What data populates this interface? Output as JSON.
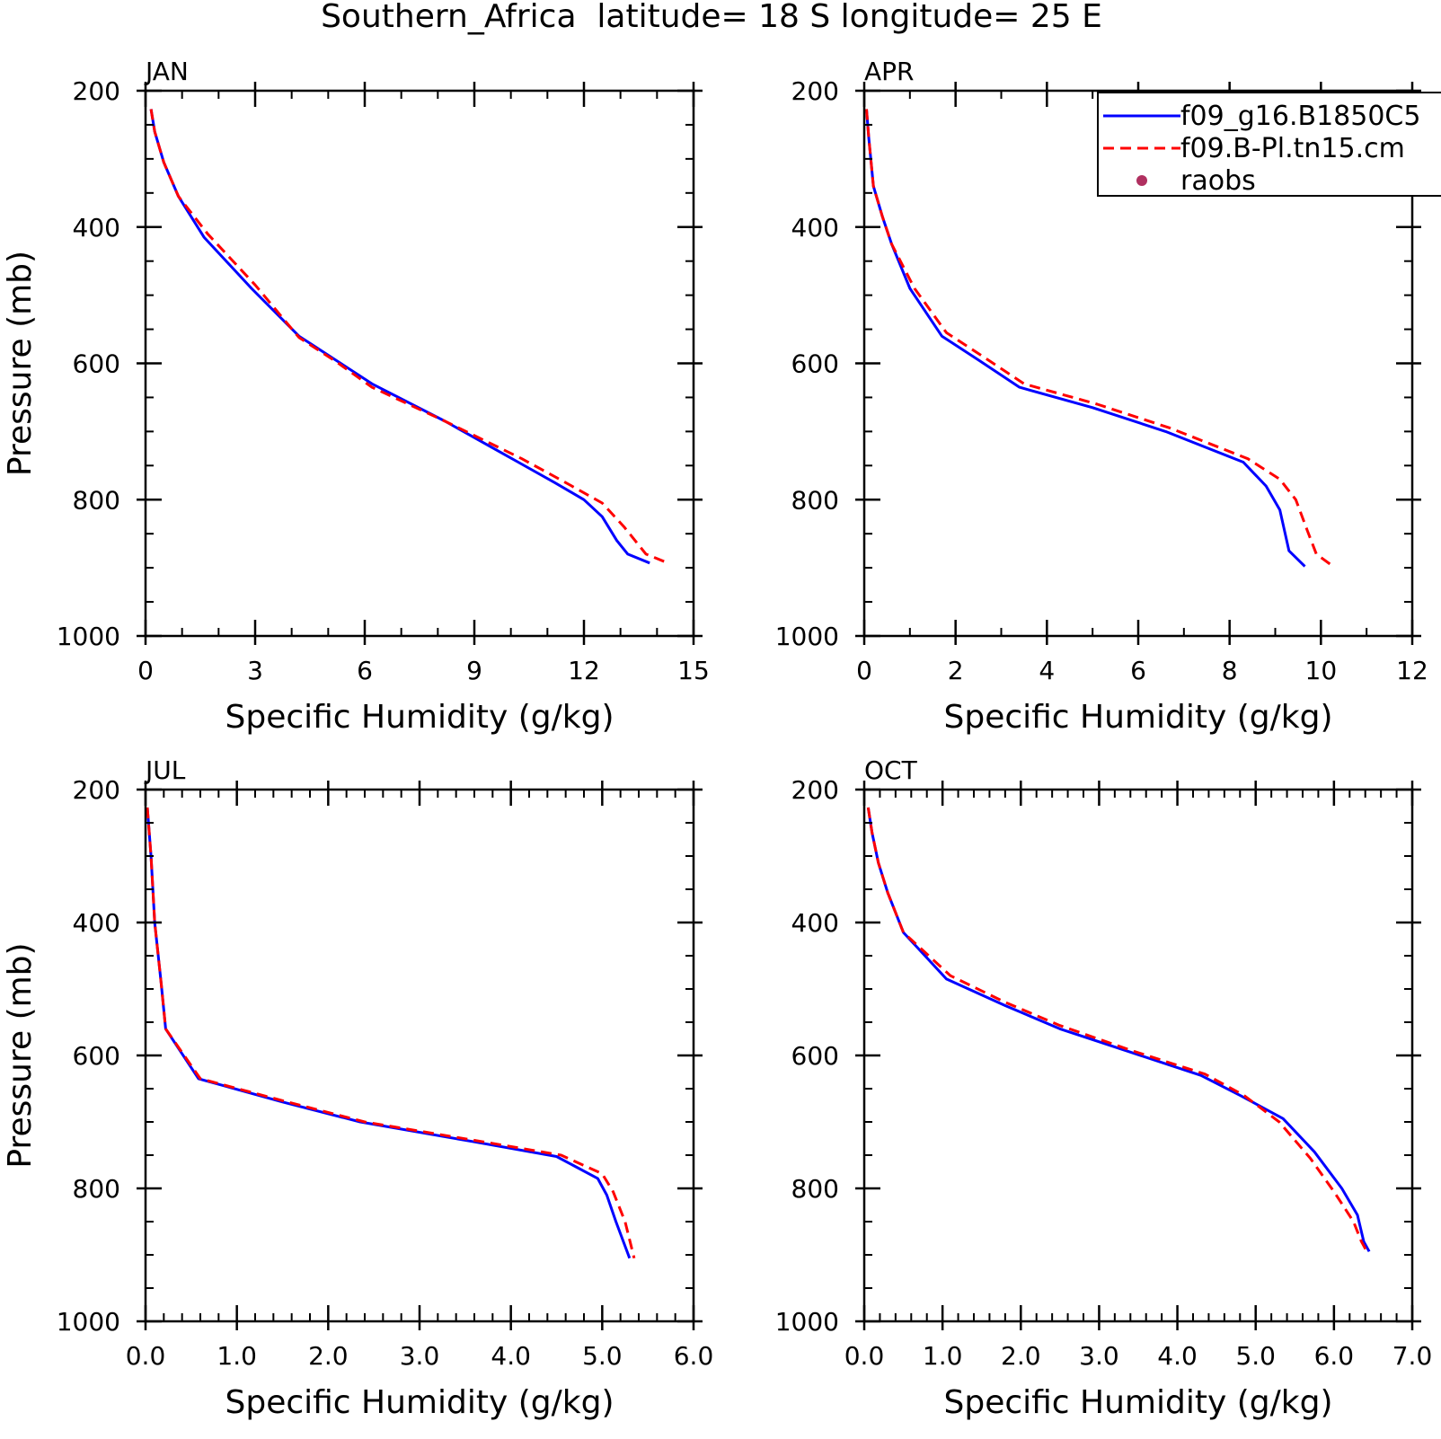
{
  "title": "Southern_Africa  latitude= 18 S longitude= 25 E",
  "legend": {
    "placement": "top-right",
    "entries": [
      {
        "label": "f09_g16.B1850C5",
        "style": "solid",
        "color": "#0000ff"
      },
      {
        "label": "f09.B-Pl.tn15.cm",
        "style": "dashed",
        "color": "#ff0000"
      },
      {
        "label": "raobs",
        "style": "marker",
        "color": "#b03060"
      }
    ]
  },
  "chart_data": [
    {
      "type": "line",
      "panel": "JAN",
      "title": "JAN",
      "xlabel": "Specific Humidity (g/kg)",
      "ylabel": "Pressure (mb)",
      "xlim": [
        0,
        15
      ],
      "ylim": [
        1000,
        200
      ],
      "y_inverted": true,
      "xticks": [
        0,
        3,
        6,
        9,
        12,
        15
      ],
      "xtick_labels": [
        "0",
        "3",
        "6",
        "9",
        "12",
        "15"
      ],
      "xminor": 1,
      "yticks": [
        200,
        400,
        600,
        800,
        1000
      ],
      "ytick_labels": [
        "200",
        "400",
        "600",
        "800",
        "1000"
      ],
      "yminor": 50,
      "grid": false,
      "series": [
        {
          "name": "f09_g16.B1850C5",
          "color": "#0000ff",
          "dash": "none",
          "x": [
            0.15,
            0.25,
            0.5,
            0.9,
            1.6,
            2.9,
            4.2,
            5.2,
            6.2,
            8.2,
            10.2,
            11.2,
            12.0,
            12.5,
            12.9,
            13.2,
            13.8
          ],
          "y": [
            227,
            260,
            305,
            355,
            415,
            490,
            560,
            595,
            630,
            685,
            745,
            775,
            800,
            825,
            860,
            880,
            893
          ]
        },
        {
          "name": "f09.B-Pl.tn15.cm",
          "color": "#ff0000",
          "dash": "dashed",
          "x": [
            0.15,
            0.25,
            0.5,
            0.9,
            1.7,
            3.0,
            4.2,
            5.2,
            6.2,
            8.2,
            10.3,
            11.5,
            12.5,
            13.1,
            13.7,
            14.3
          ],
          "y": [
            227,
            260,
            305,
            355,
            410,
            485,
            562,
            597,
            635,
            685,
            740,
            775,
            805,
            840,
            880,
            893
          ]
        }
      ]
    },
    {
      "type": "line",
      "panel": "APR",
      "title": "APR",
      "xlabel": "Specific Humidity (g/kg)",
      "ylabel": "",
      "xlim": [
        0,
        12
      ],
      "ylim": [
        1000,
        200
      ],
      "y_inverted": true,
      "xticks": [
        0,
        2,
        4,
        6,
        8,
        10,
        12
      ],
      "xtick_labels": [
        "0",
        "2",
        "4",
        "6",
        "8",
        "10",
        "12"
      ],
      "xminor": 1,
      "yticks": [
        200,
        400,
        600,
        800,
        1000
      ],
      "ytick_labels": [
        "200",
        "400",
        "600",
        "800",
        "1000"
      ],
      "yminor": 50,
      "grid": false,
      "series": [
        {
          "name": "f09_g16.B1850C5",
          "color": "#0000ff",
          "dash": "none",
          "x": [
            0.05,
            0.1,
            0.2,
            0.4,
            0.6,
            1.0,
            1.7,
            2.5,
            3.4,
            5.0,
            6.6,
            8.3,
            8.8,
            9.1,
            9.3,
            9.65
          ],
          "y": [
            227,
            270,
            340,
            385,
            425,
            490,
            560,
            595,
            635,
            665,
            700,
            745,
            780,
            815,
            875,
            898
          ]
        },
        {
          "name": "f09.B-Pl.tn15.cm",
          "color": "#ff0000",
          "dash": "dashed",
          "x": [
            0.05,
            0.1,
            0.2,
            0.4,
            0.6,
            1.1,
            1.8,
            2.6,
            3.5,
            5.1,
            6.7,
            8.4,
            9.1,
            9.45,
            9.7,
            9.9,
            10.25
          ],
          "y": [
            227,
            270,
            340,
            385,
            425,
            490,
            555,
            590,
            630,
            660,
            695,
            740,
            770,
            800,
            845,
            880,
            897
          ]
        }
      ]
    },
    {
      "type": "line",
      "panel": "JUL",
      "title": "JUL",
      "xlabel": "Specific Humidity (g/kg)",
      "ylabel": "Pressure (mb)",
      "xlim": [
        0,
        6
      ],
      "ylim": [
        1000,
        200
      ],
      "y_inverted": true,
      "xticks": [
        0,
        1,
        2,
        3,
        4,
        5,
        6
      ],
      "xtick_labels": [
        "0.0",
        "1.0",
        "2.0",
        "3.0",
        "4.0",
        "5.0",
        "6.0"
      ],
      "xminor": 0.2,
      "yticks": [
        200,
        400,
        600,
        800,
        1000
      ],
      "ytick_labels": [
        "200",
        "400",
        "600",
        "800",
        "1000"
      ],
      "yminor": 50,
      "grid": false,
      "series": [
        {
          "name": "f09_g16.B1850C5",
          "color": "#0000ff",
          "dash": "none",
          "x": [
            0.02,
            0.06,
            0.1,
            0.17,
            0.22,
            0.58,
            1.5,
            2.35,
            3.6,
            4.5,
            4.95,
            5.05,
            5.15,
            5.3
          ],
          "y": [
            227,
            300,
            400,
            490,
            560,
            635,
            670,
            700,
            730,
            752,
            785,
            810,
            850,
            905
          ]
        },
        {
          "name": "f09.B-Pl.tn15.cm",
          "color": "#ff0000",
          "dash": "dashed",
          "x": [
            0.02,
            0.06,
            0.1,
            0.17,
            0.22,
            0.6,
            1.5,
            2.4,
            3.7,
            4.55,
            5.0,
            5.12,
            5.25,
            5.35
          ],
          "y": [
            227,
            300,
            400,
            490,
            560,
            635,
            668,
            700,
            730,
            750,
            778,
            805,
            850,
            905
          ]
        }
      ]
    },
    {
      "type": "line",
      "panel": "OCT",
      "title": "OCT",
      "xlabel": "Specific Humidity (g/kg)",
      "ylabel": "",
      "xlim": [
        0,
        7
      ],
      "ylim": [
        1000,
        200
      ],
      "y_inverted": true,
      "xticks": [
        0,
        1,
        2,
        3,
        4,
        5,
        6,
        7
      ],
      "xtick_labels": [
        "0.0",
        "1.0",
        "2.0",
        "3.0",
        "4.0",
        "5.0",
        "6.0",
        "7.0"
      ],
      "xminor": 0.2,
      "yticks": [
        200,
        400,
        600,
        800,
        1000
      ],
      "ytick_labels": [
        "200",
        "400",
        "600",
        "800",
        "1000"
      ],
      "yminor": 50,
      "grid": false,
      "series": [
        {
          "name": "f09_g16.B1850C5",
          "color": "#0000ff",
          "dash": "none",
          "x": [
            0.05,
            0.1,
            0.18,
            0.3,
            0.5,
            1.05,
            1.8,
            2.5,
            3.4,
            4.3,
            4.8,
            5.35,
            5.75,
            6.1,
            6.3,
            6.38,
            6.45
          ],
          "y": [
            227,
            265,
            310,
            355,
            415,
            485,
            525,
            560,
            595,
            630,
            660,
            695,
            745,
            800,
            840,
            880,
            895
          ]
        },
        {
          "name": "f09.B-Pl.tn15.cm",
          "color": "#ff0000",
          "dash": "dashed",
          "x": [
            0.05,
            0.1,
            0.18,
            0.3,
            0.5,
            1.1,
            1.8,
            2.5,
            3.4,
            4.35,
            4.85,
            5.3,
            5.7,
            6.0,
            6.25,
            6.35,
            6.42
          ],
          "y": [
            227,
            265,
            310,
            355,
            415,
            480,
            520,
            555,
            592,
            628,
            660,
            700,
            755,
            805,
            850,
            880,
            895
          ]
        }
      ]
    }
  ]
}
